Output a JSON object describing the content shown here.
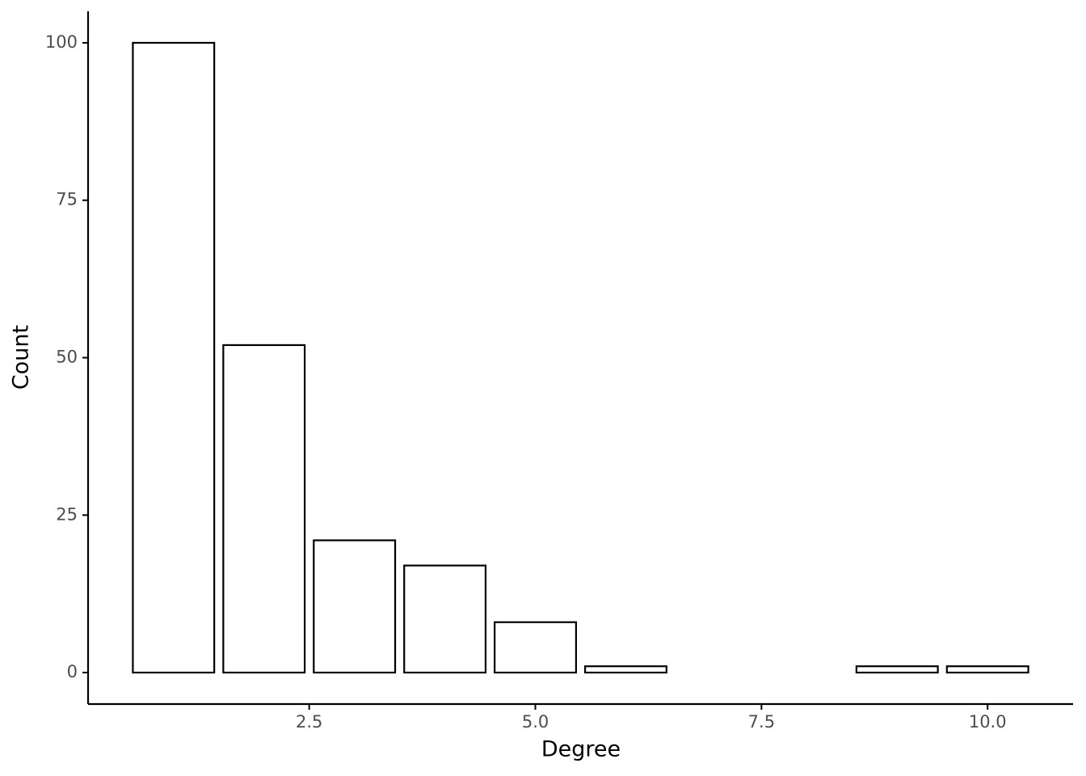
{
  "chart_data": {
    "type": "bar",
    "x_label": "Degree",
    "y_label": "Count",
    "x": [
      1,
      2,
      3,
      4,
      5,
      6,
      9,
      10
    ],
    "values": [
      100,
      52,
      21,
      17,
      8,
      1,
      1,
      1
    ],
    "color": "#ffffff",
    "edgecolor": "#000000",
    "xlim": [
      0.055,
      10.945
    ],
    "xticks": [
      2.5,
      {
        "value": 5,
        "label": "5.0"
      },
      7.5,
      {
        "value": 10,
        "label": "10.0"
      }
    ],
    "ylim": [
      -5,
      105
    ],
    "yticks": [
      0,
      25,
      50,
      75,
      100
    ],
    "grid": false
  }
}
